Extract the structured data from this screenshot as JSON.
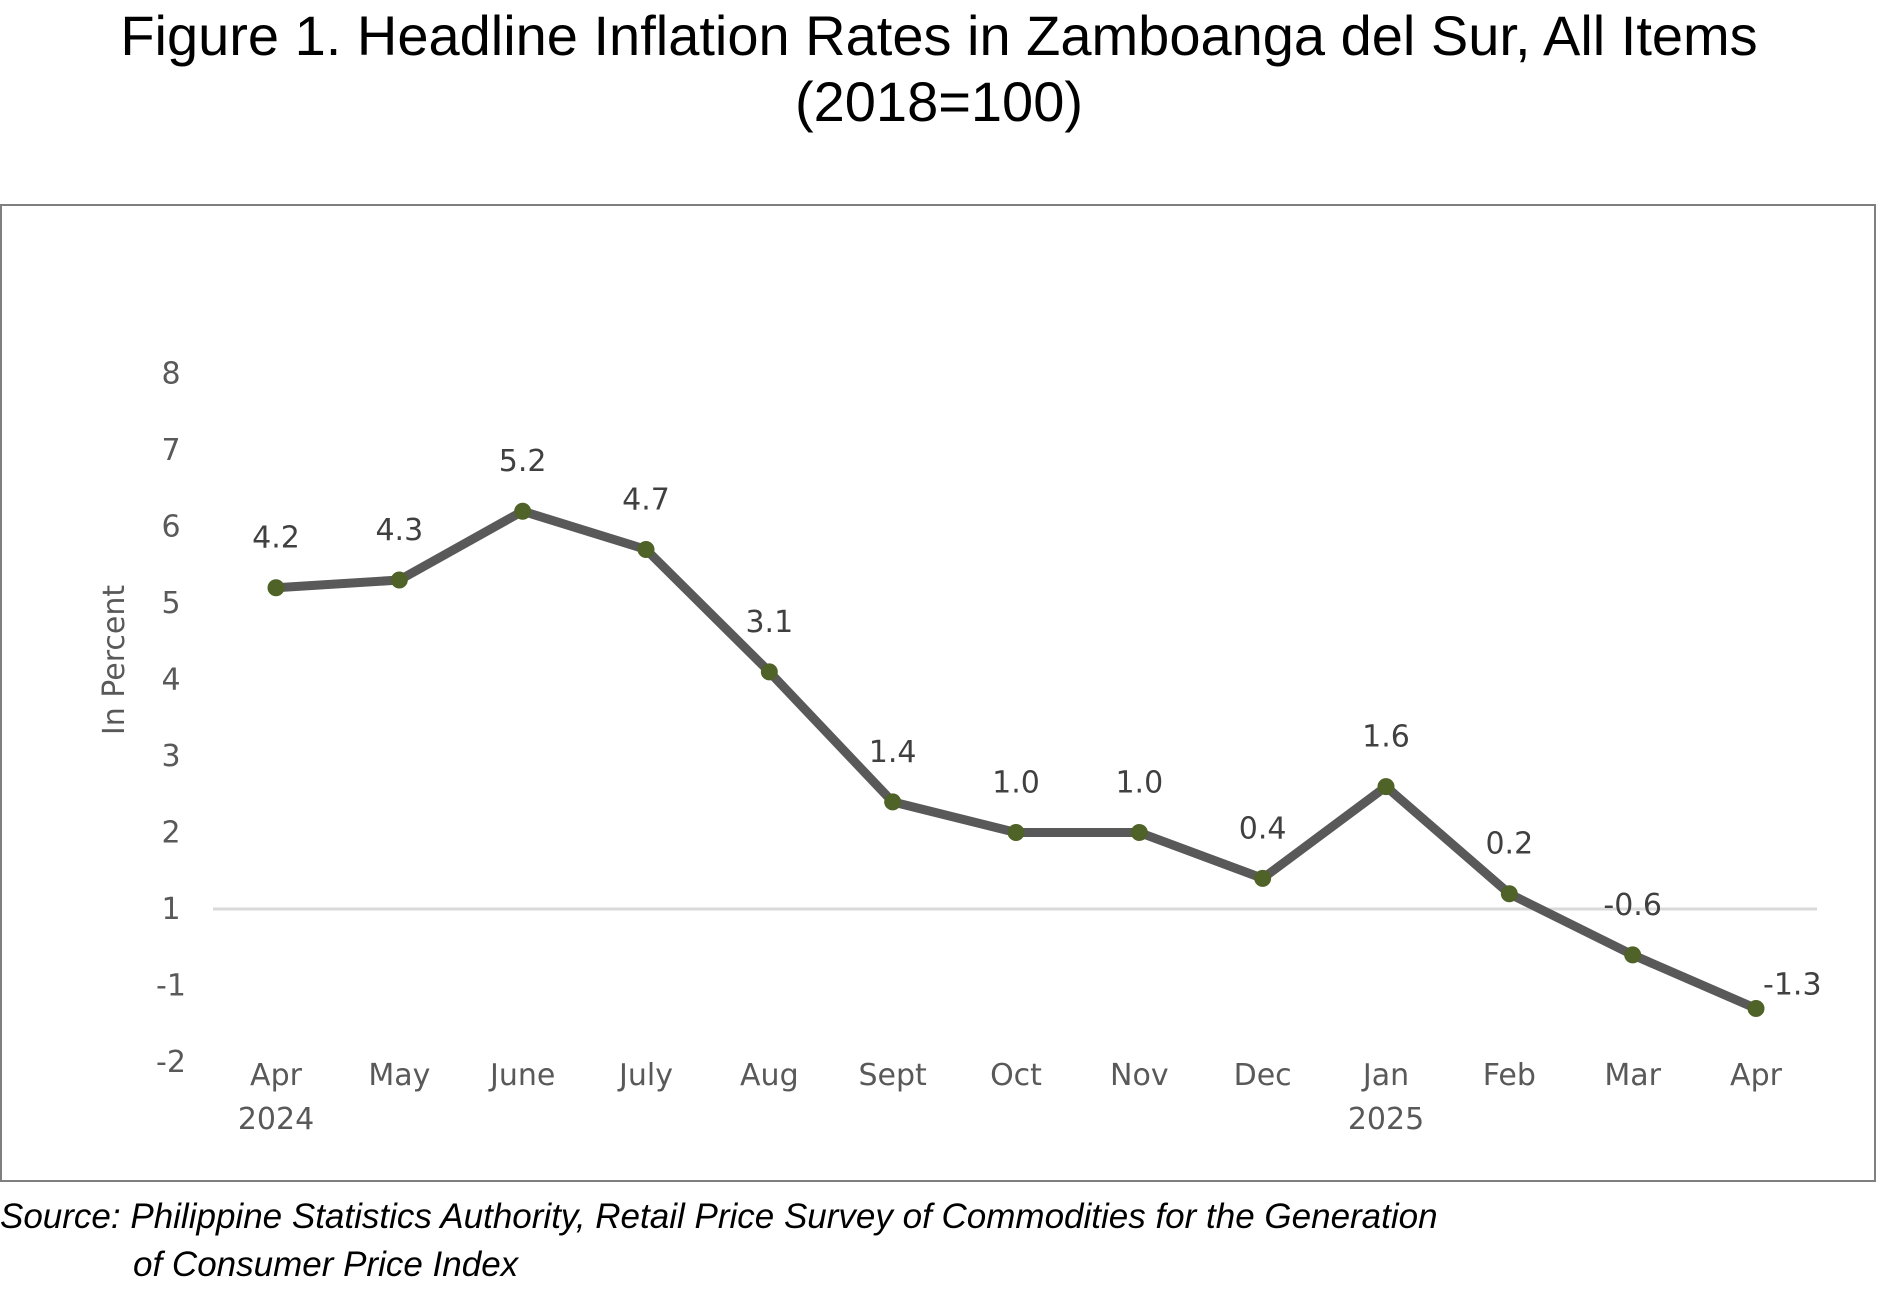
{
  "chart_data": {
    "type": "line",
    "title": "Figure 1. Headline Inflation Rates in Zamboanga del Sur, All Items",
    "subtitle": "(2018=100)",
    "ylabel": "In Percent",
    "xlabel": "",
    "categories": [
      "Apr\n2024",
      "May",
      "June",
      "July",
      "Aug",
      "Sept",
      "Oct",
      "Nov",
      "Dec",
      "Jan\n2025",
      "Feb",
      "Mar",
      "Apr"
    ],
    "series": [
      {
        "values": [
          4.2,
          4.3,
          5.2,
          4.7,
          3.1,
          1.4,
          1.0,
          1.0,
          0.4,
          1.6,
          0.2,
          -0.6,
          -1.3
        ],
        "labels": [
          "4.2",
          "4.3",
          "5.2",
          "4.7",
          "3.1",
          "1.4",
          "1.0",
          "1.0",
          "0.4",
          "1.6",
          "0.2",
          "-0.6",
          "-1.3"
        ],
        "line_color": "#595959",
        "marker_color": "#4f6228"
      }
    ],
    "ytick_labels": [
      "8",
      "7",
      "6",
      "5",
      "4",
      "3",
      "2",
      "1",
      "-1",
      "-2"
    ],
    "ylim": [
      -2,
      7.5
    ],
    "zero_line": true,
    "grid": false,
    "legend": "none",
    "source": "Source: Philippine Statistics Authority, Retail Price Survey of Commodities for the Generation",
    "source_cont": "of Consumer Price Index"
  }
}
